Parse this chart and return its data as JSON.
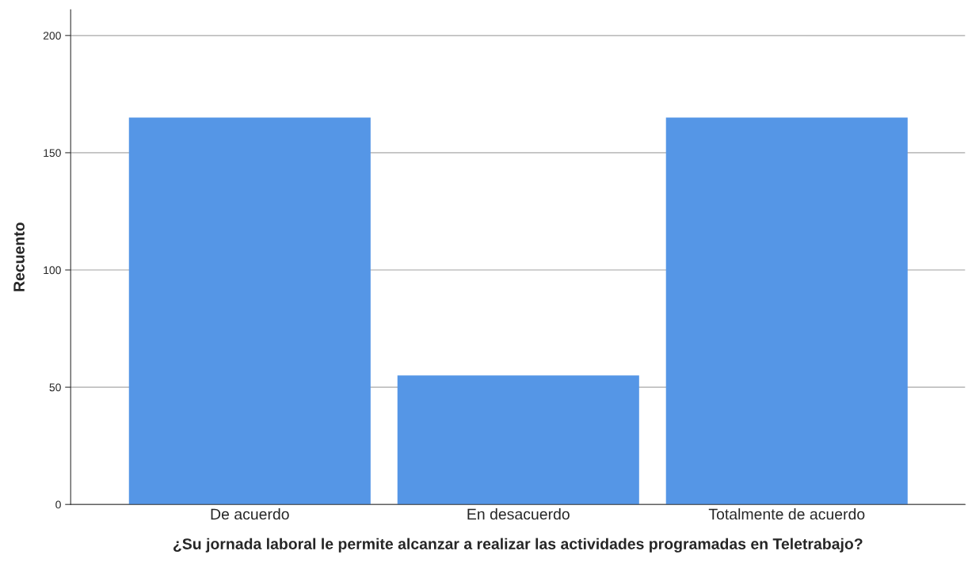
{
  "chart_data": {
    "type": "bar",
    "xlabel": "¿Su jornada laboral le permite alcanzar a realizar las actividades programadas en Teletrabajo?",
    "ylabel": "Recuento",
    "categories": [
      "De acuerdo",
      "En desacuerdo",
      "Totalmente de acuerdo"
    ],
    "values": [
      165,
      55,
      165
    ],
    "color": "#5596e6",
    "ylim": [
      0,
      211
    ],
    "yticks": [
      0,
      50,
      100,
      150,
      200
    ],
    "grid": "y"
  }
}
